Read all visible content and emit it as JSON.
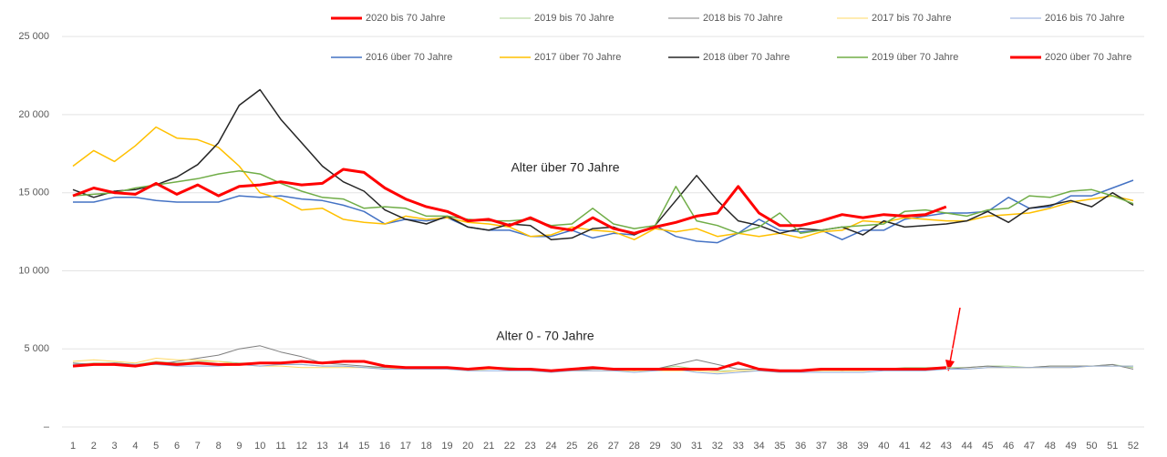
{
  "chart_data": {
    "type": "line",
    "annotations": [
      "Alter über 70 Jahre",
      "Alter 0 - 70 Jahre"
    ],
    "categories": [
      1,
      2,
      3,
      4,
      5,
      6,
      7,
      8,
      9,
      10,
      11,
      12,
      13,
      14,
      15,
      16,
      17,
      18,
      19,
      20,
      21,
      22,
      23,
      24,
      25,
      26,
      27,
      28,
      29,
      30,
      31,
      32,
      33,
      34,
      35,
      36,
      37,
      38,
      39,
      40,
      41,
      42,
      43,
      44,
      45,
      46,
      47,
      48,
      49,
      50,
      51,
      52
    ],
    "ylim": [
      0,
      26000
    ],
    "yticks": [
      {
        "value": 0,
        "label": "–"
      },
      {
        "value": 5000,
        "label": "5 000"
      },
      {
        "value": 10000,
        "label": "10 000"
      },
      {
        "value": 15000,
        "label": "15 000"
      },
      {
        "value": 20000,
        "label": "20 000"
      },
      {
        "value": 25000,
        "label": "25 000"
      }
    ],
    "grid": true,
    "legend": "top",
    "series": [
      {
        "name": "2020 bis 70 Jahre",
        "color": "#ff0000",
        "width": 3,
        "values": [
          3900,
          4000,
          4000,
          3900,
          4100,
          4000,
          4100,
          4000,
          4000,
          4100,
          4100,
          4200,
          4100,
          4200,
          4200,
          3900,
          3800,
          3800,
          3800,
          3700,
          3800,
          3700,
          3700,
          3600,
          3700,
          3800,
          3700,
          3700,
          3700,
          3700,
          3700,
          3700,
          4100,
          3700,
          3600,
          3600,
          3700,
          3700,
          3700,
          3700,
          3700,
          3700,
          3800,
          null,
          null,
          null,
          null,
          null,
          null,
          null,
          null,
          null
        ]
      },
      {
        "name": "2019 bis 70 Jahre",
        "color": "#a9d18e",
        "width": 1,
        "values": [
          4000,
          4100,
          4100,
          4000,
          4200,
          4100,
          4200,
          4200,
          4100,
          4100,
          4000,
          4000,
          3900,
          3900,
          3800,
          3800,
          3800,
          3800,
          3800,
          3700,
          3800,
          3800,
          3700,
          3600,
          3700,
          3800,
          3700,
          3600,
          3700,
          3900,
          3700,
          3600,
          3600,
          3600,
          3600,
          3600,
          3600,
          3700,
          3700,
          3700,
          3800,
          3800,
          3800,
          3800,
          3900,
          3900,
          3800,
          3900,
          3900,
          3900,
          4000,
          3800
        ]
      },
      {
        "name": "2018 bis 70 Jahre",
        "color": "#7f7f7f",
        "width": 1,
        "values": [
          4100,
          4000,
          4100,
          4000,
          4000,
          4200,
          4400,
          4600,
          5000,
          5200,
          4800,
          4500,
          4100,
          4000,
          3900,
          3800,
          3800,
          3700,
          3800,
          3700,
          3700,
          3700,
          3700,
          3600,
          3600,
          3700,
          3700,
          3600,
          3700,
          4000,
          4300,
          4000,
          3700,
          3700,
          3600,
          3600,
          3700,
          3600,
          3700,
          3700,
          3700,
          3700,
          3700,
          3800,
          3900,
          3800,
          3800,
          3900,
          3900,
          3900,
          4000,
          3700
        ]
      },
      {
        "name": "2017 bis 70 Jahre",
        "color": "#ffd966",
        "width": 1,
        "values": [
          4200,
          4300,
          4200,
          4100,
          4400,
          4300,
          4300,
          4200,
          4000,
          3900,
          3900,
          3800,
          3800,
          3800,
          3800,
          3700,
          3800,
          3700,
          3700,
          3600,
          3700,
          3700,
          3600,
          3600,
          3600,
          3600,
          3600,
          3600,
          3600,
          3600,
          3600,
          3500,
          3600,
          3600,
          3500,
          3600,
          3600,
          3600,
          3600,
          3700,
          3700,
          3700,
          3700,
          3700,
          3800,
          3800,
          3800,
          3800,
          3800,
          3900,
          3900,
          3900
        ]
      },
      {
        "name": "2016 bis 70 Jahre",
        "color": "#8faadc",
        "width": 1,
        "values": [
          4000,
          4000,
          4000,
          4000,
          4000,
          3900,
          3900,
          3900,
          4000,
          3900,
          4000,
          4000,
          3900,
          3900,
          3800,
          3700,
          3700,
          3700,
          3700,
          3600,
          3600,
          3600,
          3600,
          3500,
          3600,
          3600,
          3600,
          3500,
          3600,
          3700,
          3500,
          3400,
          3500,
          3600,
          3500,
          3500,
          3500,
          3500,
          3500,
          3600,
          3600,
          3600,
          3700,
          3700,
          3800,
          3800,
          3800,
          3800,
          3800,
          3900,
          3900,
          3900
        ]
      },
      {
        "name": "2016 über 70 Jahre",
        "color": "#4472c4",
        "width": 1.5,
        "values": [
          14400,
          14400,
          14700,
          14700,
          14500,
          14400,
          14400,
          14400,
          14800,
          14700,
          14800,
          14600,
          14500,
          14200,
          13800,
          13000,
          13300,
          13200,
          13400,
          12800,
          12600,
          12600,
          12200,
          12200,
          12600,
          12100,
          12400,
          12300,
          12900,
          12200,
          11900,
          11800,
          12400,
          13300,
          12600,
          12500,
          12600,
          12000,
          12600,
          12600,
          13300,
          13500,
          13700,
          13700,
          13800,
          14700,
          14000,
          14100,
          14800,
          14800,
          15300,
          15800
        ]
      },
      {
        "name": "2017 über 70 Jahre",
        "color": "#ffc000",
        "width": 1.5,
        "values": [
          16700,
          17700,
          17000,
          18000,
          19200,
          18500,
          18400,
          17900,
          16700,
          15000,
          14600,
          13900,
          14000,
          13300,
          13100,
          13000,
          13500,
          13300,
          13400,
          13100,
          13000,
          12800,
          12200,
          12300,
          12800,
          12600,
          12500,
          12000,
          12700,
          12500,
          12700,
          12200,
          12400,
          12200,
          12400,
          12100,
          12500,
          12600,
          13200,
          13100,
          13400,
          13300,
          13200,
          13200,
          13500,
          13600,
          13700,
          14000,
          14400,
          14600,
          14800,
          14500
        ]
      },
      {
        "name": "2018 über 70 Jahre",
        "color": "#262626",
        "width": 1.5,
        "values": [
          15200,
          14700,
          15100,
          15200,
          15500,
          16000,
          16800,
          18200,
          20600,
          21600,
          19700,
          18200,
          16700,
          15700,
          15100,
          13900,
          13300,
          13000,
          13500,
          12800,
          12600,
          13000,
          12900,
          12000,
          12100,
          12700,
          12800,
          12300,
          12900,
          14500,
          16100,
          14500,
          13200,
          12900,
          12400,
          12700,
          12600,
          12800,
          12300,
          13200,
          12800,
          12900,
          13000,
          13200,
          13800,
          13100,
          14000,
          14200,
          14500,
          14100,
          15000,
          14200
        ]
      },
      {
        "name": "2019 über 70 Jahre",
        "color": "#70ad47",
        "width": 1.5,
        "values": [
          14800,
          14900,
          15000,
          15300,
          15500,
          15700,
          15900,
          16200,
          16400,
          16200,
          15600,
          15100,
          14700,
          14600,
          14000,
          14100,
          14000,
          13500,
          13500,
          13300,
          13200,
          13200,
          13300,
          12900,
          13000,
          14000,
          13000,
          12700,
          12900,
          15400,
          13200,
          12900,
          12400,
          12800,
          13700,
          12400,
          12600,
          12800,
          12900,
          13000,
          13800,
          13900,
          13700,
          13500,
          13900,
          14000,
          14800,
          14700,
          15100,
          15200,
          14800,
          14300
        ]
      },
      {
        "name": "2020 über 70 Jahre",
        "color": "#ff0000",
        "width": 3,
        "values": [
          14800,
          15300,
          15000,
          14900,
          15600,
          14900,
          15500,
          14800,
          15400,
          15500,
          15700,
          15500,
          15600,
          16500,
          16300,
          15300,
          14600,
          14100,
          13800,
          13200,
          13300,
          12900,
          13400,
          12800,
          12600,
          13400,
          12700,
          12400,
          12800,
          13100,
          13500,
          13700,
          15400,
          13700,
          12900,
          12900,
          13200,
          13600,
          13400,
          13600,
          13500,
          13600,
          14100,
          null,
          null,
          null,
          null,
          null,
          null,
          null,
          null,
          null
        ]
      }
    ]
  }
}
